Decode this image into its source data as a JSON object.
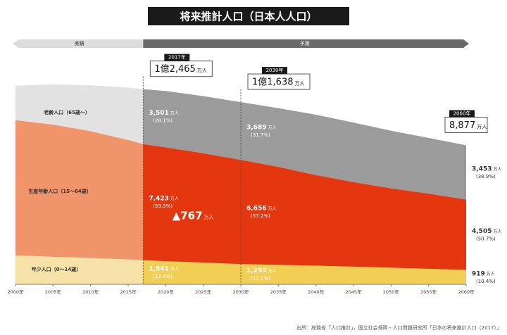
{
  "chart_data": {
    "type": "stacked-area",
    "title": "将来推計人口（日本人人口）",
    "phases": [
      {
        "label": "実績",
        "from": 2000,
        "to": 2017,
        "color": "#dcdcdc"
      },
      {
        "label": "予測",
        "from": 2017,
        "to": 2060,
        "color": "#6a6a6a"
      }
    ],
    "unit": "万人",
    "x": [
      2000,
      2005,
      2010,
      2015,
      2017,
      2020,
      2025,
      2030,
      2035,
      2040,
      2045,
      2050,
      2055,
      2060
    ],
    "xlim": [
      2000,
      2060
    ],
    "xticks": [
      {
        "value": 2000,
        "label": "2000年"
      },
      {
        "value": 2005,
        "label": "2005年"
      },
      {
        "value": 2010,
        "label": "2010年"
      },
      {
        "value": 2015,
        "label": "2015年"
      },
      {
        "value": 2020,
        "label": "2020年"
      },
      {
        "value": 2025,
        "label": "2025年"
      },
      {
        "value": 2030,
        "label": "2030年"
      },
      {
        "value": 2035,
        "label": "2035年"
      },
      {
        "value": 2040,
        "label": "2040年"
      },
      {
        "value": 2045,
        "label": "2045年"
      },
      {
        "value": 2050,
        "label": "2050年"
      },
      {
        "value": 2055,
        "label": "2055年"
      },
      {
        "value": 2060,
        "label": "2060年"
      }
    ],
    "ylim": [
      0,
      12900
    ],
    "series": [
      {
        "name": "年少人口（0～14歳）",
        "color": "#f1cf55",
        "past_color": "#f6e2a6",
        "values": [
          1847,
          1759,
          1680,
          1589,
          1541,
          1480,
          1390,
          1293,
          1240,
          1190,
          1130,
          1060,
          990,
          919
        ],
        "value_labels": [
          null,
          null,
          null,
          null,
          "1,541",
          null,
          null,
          "1,293",
          null,
          null,
          null,
          null,
          null,
          "919"
        ],
        "shares": [
          null,
          null,
          null,
          null,
          12.4,
          null,
          null,
          11.1,
          null,
          null,
          null,
          null,
          null,
          10.4
        ],
        "share_labels": [
          null,
          null,
          null,
          null,
          "(12.4%)",
          null,
          null,
          "(11.1%)",
          null,
          null,
          null,
          null,
          null,
          "(10.4%)"
        ]
      },
      {
        "name": "生産年齢人口（15～64歳）",
        "color": "#e5370f",
        "past_color": "#f0956b",
        "values": [
          8638,
          8442,
          8103,
          7629,
          7423,
          7270,
          6980,
          6656,
          6260,
          5790,
          5400,
          5070,
          4800,
          4505
        ],
        "value_labels": [
          null,
          null,
          null,
          null,
          "7,423",
          null,
          null,
          "6,656",
          null,
          null,
          null,
          null,
          null,
          "4,505"
        ],
        "shares": [
          null,
          null,
          null,
          null,
          59.5,
          null,
          null,
          57.2,
          null,
          null,
          null,
          null,
          null,
          50.7
        ],
        "share_labels": [
          null,
          null,
          null,
          null,
          "(59.5%)",
          null,
          null,
          "(57.2%)",
          null,
          null,
          null,
          null,
          null,
          "(50.7%)"
        ]
      },
      {
        "name": "老齢人口（65歳～）",
        "color": "#9b9b9b",
        "past_color": "#e2e2e2",
        "values": [
          2204,
          2567,
          2925,
          3347,
          3501,
          3600,
          3650,
          3689,
          3750,
          3850,
          3800,
          3680,
          3560,
          3453
        ],
        "value_labels": [
          null,
          null,
          null,
          null,
          "3,501",
          null,
          null,
          "3,689",
          null,
          null,
          null,
          null,
          null,
          "3,453"
        ],
        "shares": [
          null,
          null,
          null,
          null,
          28.1,
          null,
          null,
          31.7,
          null,
          null,
          null,
          null,
          null,
          38.9
        ],
        "share_labels": [
          null,
          null,
          null,
          null,
          "(28.1%)",
          null,
          null,
          "(31.7%)",
          null,
          null,
          null,
          null,
          null,
          "(38.9%)"
        ]
      }
    ],
    "totals": [
      {
        "tag": "2017年",
        "x": 2017,
        "value": 12465,
        "label": "1億2,465"
      },
      {
        "tag": "2030年",
        "x": 2030,
        "value": 11638,
        "label": "1億1,638"
      },
      {
        "tag": "2060年",
        "x": 2060,
        "value": 8877,
        "label": "8,877"
      }
    ],
    "annotation": {
      "value": 767,
      "label": "▲767",
      "from": 2017,
      "to": 2030
    },
    "source": "出所：総務省「人口推計」，国立社会保障・人口問題研究所「日本の将来推計人口（2017）」"
  }
}
